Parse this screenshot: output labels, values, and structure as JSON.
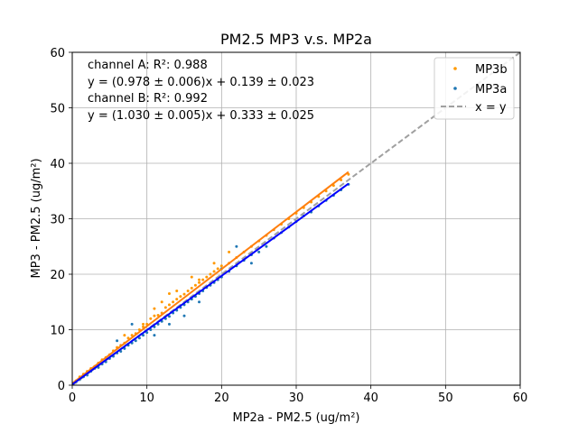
{
  "chart_data": {
    "type": "scatter",
    "title": "PM2.5 MP3 v.s. MP2a",
    "xlabel": "MP2a - PM2.5 (ug/m²)",
    "ylabel": "MP3 - PM2.5 (ug/m²)",
    "xlim": [
      0,
      60
    ],
    "ylim": [
      0,
      60
    ],
    "xticks": [
      "0",
      "10",
      "20",
      "30",
      "40",
      "50",
      "60"
    ],
    "yticks": [
      "0",
      "10",
      "20",
      "30",
      "40",
      "50",
      "60"
    ],
    "grid": true,
    "legend_position": "top-right",
    "annotations": [
      "channel A: R²: 0.988",
      "y = (0.978 ± 0.006)x + 0.139 ± 0.023",
      "channel B: R²: 0.992",
      "y = (1.030 ± 0.005)x + 0.333 ± 0.025"
    ],
    "series": [
      {
        "name": "MP3b",
        "kind": "scatter",
        "color": "#ff9900",
        "points": [
          [
            0.5,
            0.8
          ],
          [
            1,
            1.5
          ],
          [
            1.5,
            2
          ],
          [
            2,
            2.5
          ],
          [
            2.5,
            3
          ],
          [
            3,
            3.4
          ],
          [
            3.5,
            4
          ],
          [
            4,
            4.6
          ],
          [
            4.5,
            5
          ],
          [
            5,
            5.5
          ],
          [
            5.5,
            6.2
          ],
          [
            6,
            6.8
          ],
          [
            6.5,
            7.2
          ],
          [
            7,
            7.6
          ],
          [
            7.5,
            8.5
          ],
          [
            8,
            9
          ],
          [
            8.5,
            9.3
          ],
          [
            9,
            10
          ],
          [
            9.5,
            10.5
          ],
          [
            10,
            11
          ],
          [
            10.5,
            12
          ],
          [
            11,
            12.5
          ],
          [
            11.5,
            12.6
          ],
          [
            12,
            13
          ],
          [
            12.5,
            14
          ],
          [
            13,
            14.5
          ],
          [
            13.5,
            15
          ],
          [
            14,
            15.5
          ],
          [
            14.5,
            16
          ],
          [
            15,
            16.4
          ],
          [
            15.5,
            17
          ],
          [
            16,
            17.5
          ],
          [
            16.5,
            18
          ],
          [
            17,
            18.5
          ],
          [
            17.5,
            19
          ],
          [
            18,
            19.5
          ],
          [
            18.5,
            20
          ],
          [
            19,
            20.5
          ],
          [
            19.5,
            21
          ],
          [
            20,
            21.5
          ],
          [
            21,
            22
          ],
          [
            22,
            23
          ],
          [
            23,
            24
          ],
          [
            24,
            25
          ],
          [
            25,
            26
          ],
          [
            26,
            27
          ],
          [
            27,
            28
          ],
          [
            28,
            29
          ],
          [
            29,
            30
          ],
          [
            30,
            31
          ],
          [
            31,
            32
          ],
          [
            32,
            33
          ],
          [
            33,
            34
          ],
          [
            34,
            35
          ],
          [
            35,
            36
          ],
          [
            36,
            37
          ],
          [
            37,
            38
          ],
          [
            7,
            9
          ],
          [
            9.5,
            11
          ],
          [
            11,
            13.8
          ],
          [
            12,
            15
          ],
          [
            13,
            16.5
          ],
          [
            14,
            17
          ],
          [
            16,
            19.5
          ],
          [
            17,
            19
          ],
          [
            19,
            22
          ],
          [
            21,
            24
          ]
        ]
      },
      {
        "name": "MP3a",
        "kind": "scatter",
        "color": "#1f77b4",
        "points": [
          [
            0.5,
            0.5
          ],
          [
            1,
            1
          ],
          [
            1.5,
            1.5
          ],
          [
            2,
            1.8
          ],
          [
            2.5,
            2.5
          ],
          [
            3,
            3
          ],
          [
            3.5,
            3.2
          ],
          [
            4,
            3.8
          ],
          [
            4.5,
            4.2
          ],
          [
            5,
            4.8
          ],
          [
            5.5,
            5.2
          ],
          [
            6,
            5.8
          ],
          [
            6.5,
            6.1
          ],
          [
            7,
            6.6
          ],
          [
            7.5,
            7.2
          ],
          [
            8,
            7.6
          ],
          [
            8.5,
            8
          ],
          [
            9,
            8.5
          ],
          [
            9.5,
            9
          ],
          [
            10,
            9.5
          ],
          [
            10.5,
            10
          ],
          [
            11,
            10.5
          ],
          [
            11.5,
            11
          ],
          [
            12,
            11.5
          ],
          [
            12.5,
            12
          ],
          [
            13,
            12.4
          ],
          [
            13.5,
            13
          ],
          [
            14,
            13.5
          ],
          [
            14.5,
            14
          ],
          [
            15,
            14.5
          ],
          [
            15.5,
            15
          ],
          [
            16,
            15.5
          ],
          [
            16.5,
            16
          ],
          [
            17,
            16.5
          ],
          [
            17.5,
            17
          ],
          [
            18,
            17.6
          ],
          [
            18.5,
            18
          ],
          [
            19,
            18.5
          ],
          [
            19.5,
            19
          ],
          [
            20,
            19.5
          ],
          [
            21,
            20.5
          ],
          [
            22,
            21.5
          ],
          [
            23,
            22.5
          ],
          [
            24,
            23.5
          ],
          [
            25,
            24
          ],
          [
            26,
            25
          ],
          [
            27,
            26.5
          ],
          [
            28,
            27.5
          ],
          [
            29,
            28.5
          ],
          [
            30,
            29.5
          ],
          [
            31,
            30.5
          ],
          [
            32,
            31.2
          ],
          [
            33,
            32.3
          ],
          [
            34,
            33.3
          ],
          [
            35,
            34.2
          ],
          [
            36,
            35.2
          ],
          [
            37,
            36.2
          ],
          [
            6,
            8
          ],
          [
            8,
            11
          ],
          [
            11,
            9
          ],
          [
            13,
            11
          ],
          [
            15,
            12.5
          ],
          [
            17,
            15
          ],
          [
            20,
            21
          ],
          [
            22,
            25
          ],
          [
            24,
            22
          ]
        ]
      },
      {
        "name": "x = y",
        "kind": "line",
        "style": "dashed",
        "color": "#a0a0a0",
        "points": [
          [
            0,
            0
          ],
          [
            60,
            60
          ]
        ]
      },
      {
        "name": "",
        "kind": "fit",
        "color": "#ff7f0e",
        "points": [
          [
            0,
            0.333
          ],
          [
            37,
            38.44
          ]
        ]
      },
      {
        "name": "",
        "kind": "fit",
        "color": "#0000ff",
        "points": [
          [
            0,
            0.139
          ],
          [
            37,
            36.33
          ]
        ]
      }
    ]
  }
}
